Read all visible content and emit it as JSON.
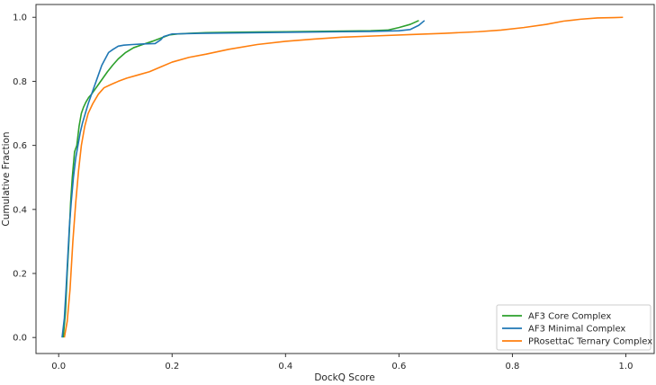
{
  "chart_data": {
    "type": "line",
    "title": "",
    "xlabel": "DockQ Score",
    "ylabel": "Cumulative Fraction",
    "xlim": [
      -0.04,
      1.05
    ],
    "ylim": [
      -0.05,
      1.04
    ],
    "xticks": [
      0.0,
      0.2,
      0.4,
      0.6,
      0.8,
      1.0
    ],
    "xtick_labels": [
      "0.0",
      "0.2",
      "0.4",
      "0.6",
      "0.8",
      "1.0"
    ],
    "yticks": [
      0.0,
      0.2,
      0.4,
      0.6,
      0.8,
      1.0
    ],
    "ytick_labels": [
      "0.0",
      "0.2",
      "0.4",
      "0.6",
      "0.8",
      "1.0"
    ],
    "grid": false,
    "legend_position": "bottom-right",
    "series": [
      {
        "name": "AF3 Core Complex",
        "color": "#2ca02c",
        "x": [
          0.008,
          0.012,
          0.015,
          0.018,
          0.021,
          0.024,
          0.028,
          0.032,
          0.036,
          0.04,
          0.044,
          0.048,
          0.053,
          0.058,
          0.064,
          0.07,
          0.078,
          0.086,
          0.095,
          0.105,
          0.118,
          0.132,
          0.148,
          0.165,
          0.18,
          0.195,
          0.21,
          0.23,
          0.26,
          0.3,
          0.35,
          0.4,
          0.45,
          0.5,
          0.55,
          0.58,
          0.6,
          0.62,
          0.635
        ],
        "y": [
          0.0,
          0.08,
          0.2,
          0.3,
          0.42,
          0.5,
          0.58,
          0.6,
          0.66,
          0.7,
          0.72,
          0.735,
          0.75,
          0.76,
          0.775,
          0.79,
          0.81,
          0.83,
          0.85,
          0.87,
          0.89,
          0.905,
          0.915,
          0.925,
          0.935,
          0.945,
          0.948,
          0.95,
          0.952,
          0.953,
          0.954,
          0.955,
          0.956,
          0.957,
          0.958,
          0.96,
          0.968,
          0.978,
          0.99
        ]
      },
      {
        "name": "AF3 Minimal Complex",
        "color": "#1f77b4",
        "x": [
          0.006,
          0.01,
          0.013,
          0.016,
          0.019,
          0.022,
          0.026,
          0.03,
          0.034,
          0.038,
          0.042,
          0.047,
          0.052,
          0.058,
          0.064,
          0.07,
          0.076,
          0.082,
          0.088,
          0.096,
          0.105,
          0.115,
          0.13,
          0.15,
          0.17,
          0.18,
          0.185,
          0.2,
          0.25,
          0.3,
          0.4,
          0.5,
          0.55,
          0.6,
          0.62,
          0.635,
          0.645
        ],
        "y": [
          0.0,
          0.06,
          0.15,
          0.25,
          0.35,
          0.42,
          0.5,
          0.56,
          0.6,
          0.64,
          0.67,
          0.7,
          0.73,
          0.76,
          0.79,
          0.82,
          0.85,
          0.87,
          0.89,
          0.9,
          0.91,
          0.913,
          0.915,
          0.917,
          0.918,
          0.93,
          0.94,
          0.948,
          0.95,
          0.951,
          0.953,
          0.955,
          0.956,
          0.958,
          0.962,
          0.975,
          0.99
        ]
      },
      {
        "name": "PRosettaC Ternary Complex",
        "color": "#ff7f0e",
        "x": [
          0.01,
          0.015,
          0.02,
          0.025,
          0.03,
          0.035,
          0.04,
          0.046,
          0.052,
          0.06,
          0.07,
          0.08,
          0.092,
          0.105,
          0.12,
          0.14,
          0.16,
          0.18,
          0.2,
          0.23,
          0.26,
          0.3,
          0.35,
          0.4,
          0.45,
          0.5,
          0.56,
          0.62,
          0.68,
          0.74,
          0.78,
          0.82,
          0.86,
          0.89,
          0.92,
          0.95,
          0.98,
          0.995
        ],
        "y": [
          0.0,
          0.05,
          0.15,
          0.3,
          0.42,
          0.52,
          0.6,
          0.66,
          0.7,
          0.73,
          0.76,
          0.78,
          0.79,
          0.8,
          0.81,
          0.82,
          0.83,
          0.845,
          0.86,
          0.875,
          0.885,
          0.9,
          0.915,
          0.925,
          0.932,
          0.938,
          0.942,
          0.946,
          0.95,
          0.955,
          0.96,
          0.968,
          0.978,
          0.988,
          0.994,
          0.998,
          0.999,
          1.0
        ]
      }
    ]
  }
}
